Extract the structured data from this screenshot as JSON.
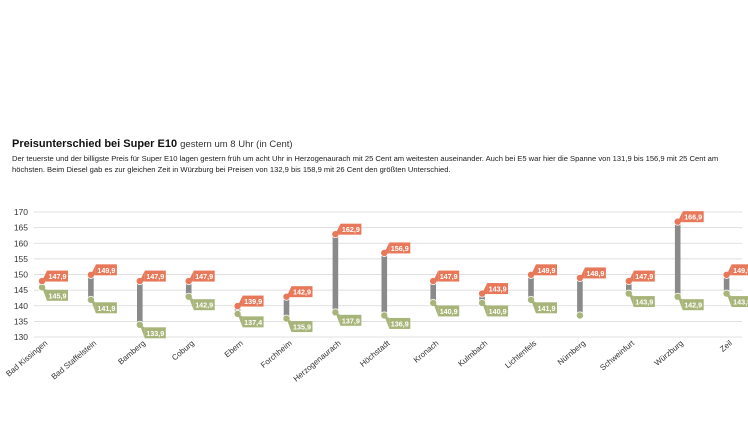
{
  "title": "Preisunterschied bei Super E10",
  "subtitle": "gestern um 8 Uhr (in Cent)",
  "description": "Der teuerste und der billigste Preis für Super E10 lagen gestern früh um acht Uhr in Herzogenaurach mit 25 Cent am weitesten auseinander. Auch bei E5 war hier die Spanne von 131,9 bis 156,9 mit 25 Cent am höchsten. Beim Diesel gab es zur gleichen Zeit in Würzburg bei Preisen von 132,9 bis 158,9 mit 26 Cent den größten Unterschied.",
  "colors": {
    "max": "#e8785a",
    "min": "#a8b57a",
    "bar": "#8a8a8a",
    "grid": "#d6d6d6"
  },
  "chart_data": {
    "type": "range",
    "title": "Preisunterschied bei Super E10",
    "subtitle": "gestern um 8 Uhr (in Cent)",
    "ylim": [
      130,
      170
    ],
    "yticks": [
      170,
      165,
      160,
      155,
      150,
      145,
      140,
      135,
      130
    ],
    "categories": [
      "Bad Kissingen",
      "Bad Staffelstein",
      "Bamberg",
      "Coburg",
      "Ebern",
      "Forchheim",
      "Herzogenaurach",
      "Höchstadt",
      "Kronach",
      "Kulmbach",
      "Lichtenfels",
      "Nürnberg",
      "Schweinfurt",
      "Würzburg",
      "Zeil"
    ],
    "max": [
      147.9,
      149.9,
      147.9,
      147.9,
      139.9,
      142.9,
      162.9,
      156.9,
      147.9,
      143.9,
      149.9,
      148.9,
      147.9,
      166.9,
      149.9
    ],
    "min": [
      145.9,
      141.9,
      133.9,
      142.9,
      137.4,
      135.9,
      137.9,
      136.9,
      140.9,
      140.9,
      141.9,
      136.9,
      143.9,
      142.9,
      143.9
    ],
    "max_labels": [
      "147,9",
      "149,9",
      "147,9",
      "147,9",
      "139,9",
      "142,9",
      "162,9",
      "156,9",
      "147,9",
      "143,9",
      "149,9",
      "148,9",
      "147,9",
      "166,9",
      "149,9"
    ],
    "min_labels": [
      "145,9",
      "141,9",
      "133,9",
      "142,9",
      "137,4",
      "135,9",
      "137,9",
      "136,9",
      "140,9",
      "140,9",
      "141,9",
      "",
      "143,9",
      "142,9",
      "143,9"
    ]
  }
}
